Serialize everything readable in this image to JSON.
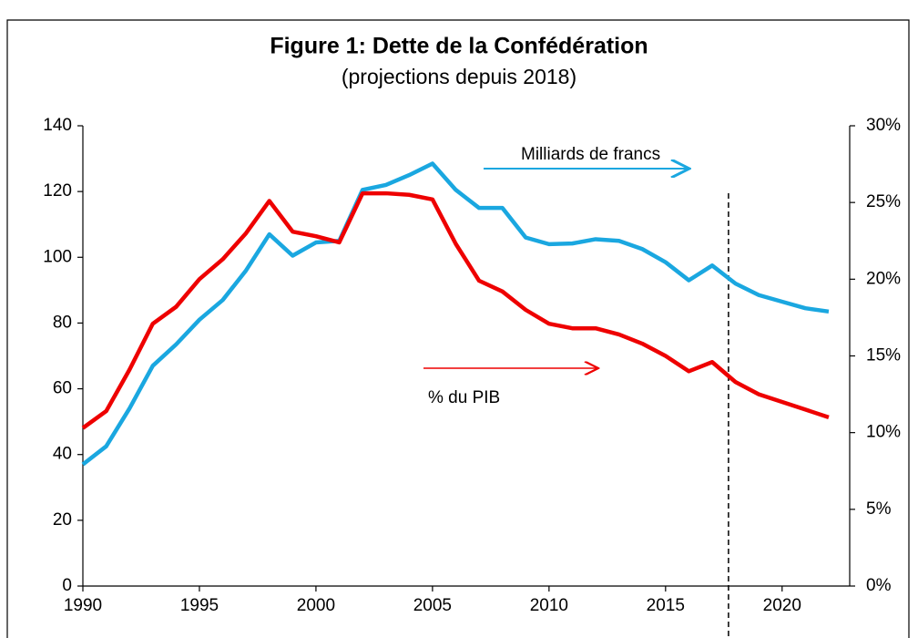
{
  "chart_data": {
    "type": "line",
    "title": "Figure 1: Dette de la Confédération",
    "subtitle": "(projections depuis 2018)",
    "x": [
      1990,
      1991,
      1992,
      1993,
      1994,
      1995,
      1996,
      1997,
      1998,
      1999,
      2000,
      2001,
      2002,
      2003,
      2004,
      2005,
      2006,
      2007,
      2008,
      2009,
      2010,
      2011,
      2012,
      2013,
      2014,
      2015,
      2016,
      2017,
      2018,
      2019,
      2020,
      2021,
      2022
    ],
    "series": [
      {
        "name": "Milliards de francs",
        "color": "#1aa7e0",
        "axis": "y",
        "values": [
          37,
          42.5,
          54,
          67,
          73.5,
          81,
          87,
          96,
          107,
          100.5,
          104.5,
          105,
          120.5,
          122,
          125,
          128.5,
          120.5,
          115,
          115,
          106,
          104,
          104.2,
          105.5,
          105,
          102.5,
          98.5,
          93,
          97.5,
          92,
          88.5,
          86.5,
          84.5,
          83.5
        ]
      },
      {
        "name": "% du PIB",
        "color": "#ee0000",
        "axis": "y2",
        "values": [
          10.3,
          11.4,
          14.1,
          17.1,
          18.2,
          20.0,
          21.3,
          23.0,
          25.1,
          23.1,
          22.8,
          22.4,
          25.6,
          25.6,
          25.5,
          25.2,
          22.3,
          19.9,
          19.2,
          18.0,
          17.1,
          16.8,
          16.8,
          16.4,
          15.8,
          15.0,
          14.0,
          14.6,
          13.3,
          12.5,
          12.0,
          11.5,
          11.0
        ]
      }
    ],
    "xlim": [
      1990,
      2022.9
    ],
    "xticks": [
      1990,
      1995,
      2000,
      2005,
      2010,
      2015,
      2020
    ],
    "ylim": [
      0,
      140
    ],
    "yticks": [
      0,
      20,
      40,
      60,
      80,
      100,
      120,
      140
    ],
    "y2lim": [
      0,
      30
    ],
    "y2ticks": [
      {
        "value": 0,
        "label": "0%"
      },
      {
        "value": 5,
        "label": "5%"
      },
      {
        "value": 10,
        "label": "10%"
      },
      {
        "value": 15,
        "label": "15%"
      },
      {
        "value": 20,
        "label": "20%"
      },
      {
        "value": 25,
        "label": "25%"
      },
      {
        "value": 30,
        "label": "30%"
      }
    ],
    "projection_line": 2017.7
  }
}
